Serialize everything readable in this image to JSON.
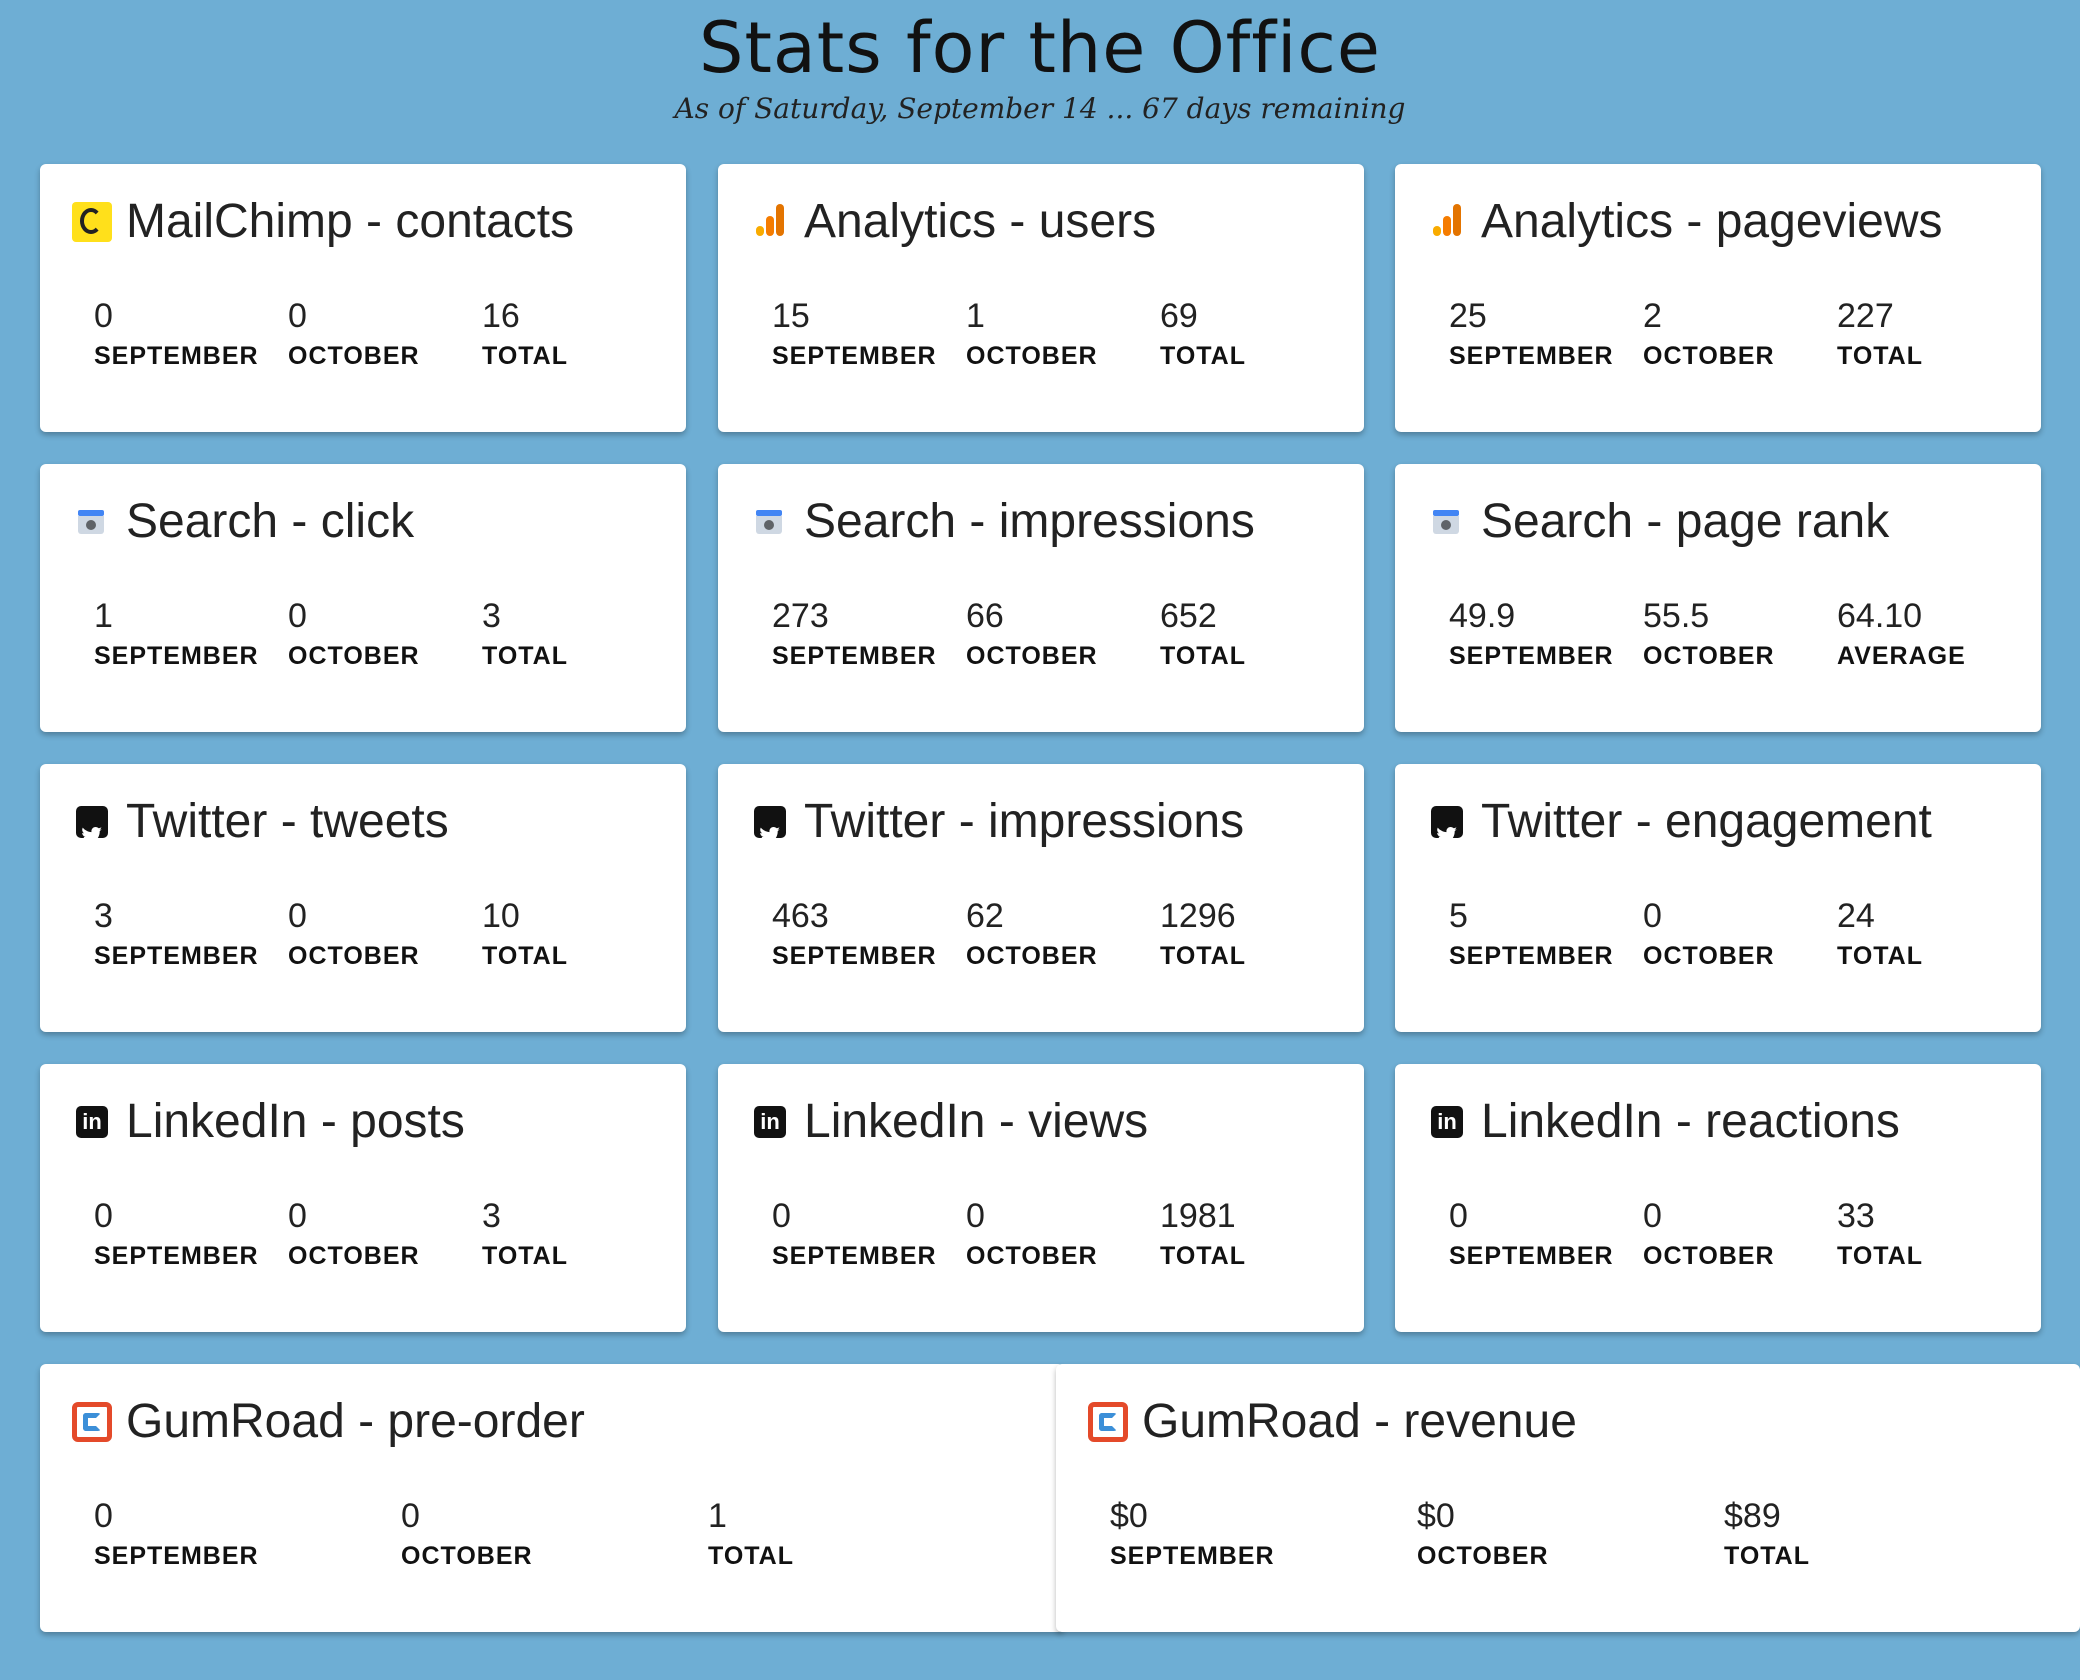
{
  "header": {
    "title": "Stats for the Office",
    "subtitle": "As of Saturday, September 14 ... 67 days remaining"
  },
  "colors": {
    "background": "#6eaed4",
    "card": "#ffffff"
  },
  "cards": [
    {
      "title": "MailChimp - contacts",
      "icon": "mailchimp-icon",
      "stats": [
        {
          "value": "0",
          "label": "SEPTEMBER"
        },
        {
          "value": "0",
          "label": "OCTOBER"
        },
        {
          "value": "16",
          "label": "TOTAL"
        }
      ]
    },
    {
      "title": "Analytics - users",
      "icon": "analytics-icon",
      "stats": [
        {
          "value": "15",
          "label": "SEPTEMBER"
        },
        {
          "value": "1",
          "label": "OCTOBER"
        },
        {
          "value": "69",
          "label": "TOTAL"
        }
      ]
    },
    {
      "title": "Analytics - pageviews",
      "icon": "analytics-icon",
      "stats": [
        {
          "value": "25",
          "label": "SEPTEMBER"
        },
        {
          "value": "2",
          "label": "OCTOBER"
        },
        {
          "value": "227",
          "label": "TOTAL"
        }
      ]
    },
    {
      "title": "Search - click",
      "icon": "search-console-icon",
      "stats": [
        {
          "value": "1",
          "label": "SEPTEMBER"
        },
        {
          "value": "0",
          "label": "OCTOBER"
        },
        {
          "value": "3",
          "label": "TOTAL"
        }
      ]
    },
    {
      "title": "Search - impressions",
      "icon": "search-console-icon",
      "stats": [
        {
          "value": "273",
          "label": "SEPTEMBER"
        },
        {
          "value": "66",
          "label": "OCTOBER"
        },
        {
          "value": "652",
          "label": "TOTAL"
        }
      ]
    },
    {
      "title": "Search - page rank",
      "icon": "search-console-icon",
      "stats": [
        {
          "value": "49.9",
          "label": "SEPTEMBER"
        },
        {
          "value": "55.5",
          "label": "OCTOBER"
        },
        {
          "value": "64.10",
          "label": "AVERAGE"
        }
      ]
    },
    {
      "title": "Twitter - tweets",
      "icon": "twitter-icon",
      "stats": [
        {
          "value": "3",
          "label": "SEPTEMBER"
        },
        {
          "value": "0",
          "label": "OCTOBER"
        },
        {
          "value": "10",
          "label": "TOTAL"
        }
      ]
    },
    {
      "title": "Twitter - impressions",
      "icon": "twitter-icon",
      "stats": [
        {
          "value": "463",
          "label": "SEPTEMBER"
        },
        {
          "value": "62",
          "label": "OCTOBER"
        },
        {
          "value": "1296",
          "label": "TOTAL"
        }
      ]
    },
    {
      "title": "Twitter - engagement",
      "icon": "twitter-icon",
      "stats": [
        {
          "value": "5",
          "label": "SEPTEMBER"
        },
        {
          "value": "0",
          "label": "OCTOBER"
        },
        {
          "value": "24",
          "label": "TOTAL"
        }
      ]
    },
    {
      "title": "LinkedIn - posts",
      "icon": "linkedin-icon",
      "stats": [
        {
          "value": "0",
          "label": "SEPTEMBER"
        },
        {
          "value": "0",
          "label": "OCTOBER"
        },
        {
          "value": "3",
          "label": "TOTAL"
        }
      ]
    },
    {
      "title": "LinkedIn - views",
      "icon": "linkedin-icon",
      "stats": [
        {
          "value": "0",
          "label": "SEPTEMBER"
        },
        {
          "value": "0",
          "label": "OCTOBER"
        },
        {
          "value": "1981",
          "label": "TOTAL"
        }
      ]
    },
    {
      "title": "LinkedIn - reactions",
      "icon": "linkedin-icon",
      "stats": [
        {
          "value": "0",
          "label": "SEPTEMBER"
        },
        {
          "value": "0",
          "label": "OCTOBER"
        },
        {
          "value": "33",
          "label": "TOTAL"
        }
      ]
    },
    {
      "title": "GumRoad - pre-order",
      "icon": "gumroad-icon",
      "stats": [
        {
          "value": "0",
          "label": "SEPTEMBER"
        },
        {
          "value": "0",
          "label": "OCTOBER"
        },
        {
          "value": "1",
          "label": "TOTAL"
        }
      ]
    },
    {
      "title": "GumRoad - revenue",
      "icon": "gumroad-icon",
      "stats": [
        {
          "value": "$0",
          "label": "SEPTEMBER"
        },
        {
          "value": "$0",
          "label": "OCTOBER"
        },
        {
          "value": "$89",
          "label": "TOTAL"
        }
      ]
    }
  ]
}
